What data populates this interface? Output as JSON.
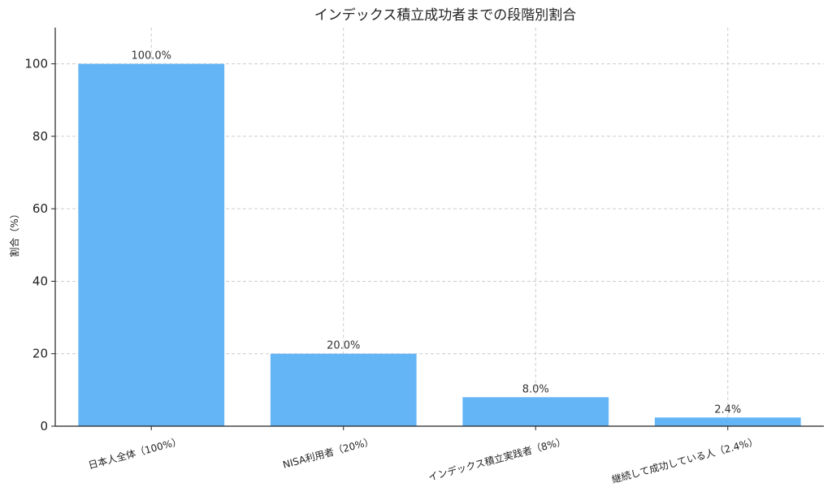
{
  "chart_data": {
    "type": "bar",
    "title": "インデックス積立成功者までの段階別割合",
    "ylabel": "割合（%）",
    "xlabel": "",
    "categories": [
      "日本人全体（100%）",
      "NISA利用者（20%）",
      "インデックス積立実践者（8%）",
      "継続して成功している人（2.4%）"
    ],
    "values": [
      100.0,
      20.0,
      8.0,
      2.4
    ],
    "data_labels": [
      "100.0%",
      "20.0%",
      "8.0%",
      "2.4%"
    ],
    "ylim": [
      0,
      110
    ],
    "yticks": [
      0,
      20,
      40,
      60,
      80,
      100
    ],
    "grid": true,
    "legend": "none",
    "bar_color": "#64b5f6"
  }
}
